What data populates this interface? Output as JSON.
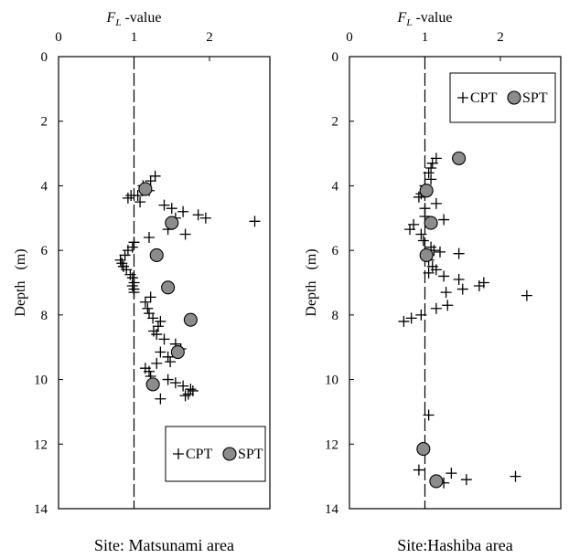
{
  "chart_data": [
    {
      "type": "scatter",
      "top_axis_label_main": "F",
      "top_axis_label_sub": "L",
      "top_axis_label_suffix": " -value",
      "x_ticks": [
        "0",
        "1",
        "2"
      ],
      "xlim": [
        0,
        2.8
      ],
      "ylabel": "Depth   (m)",
      "y_ticks": [
        "0",
        "2",
        "4",
        "6",
        "8",
        "10",
        "12",
        "14"
      ],
      "ylim": [
        0,
        14
      ],
      "y_inverted": true,
      "reference_line_x": 1,
      "caption": "Site: Matsunami area",
      "legend": {
        "placement": "bottom-right",
        "cpt_label": "CPT",
        "spt_label": "SPT"
      },
      "series": [
        {
          "name": "CPT",
          "marker": "plus",
          "points": [
            [
              1.28,
              3.7
            ],
            [
              1.22,
              3.85
            ],
            [
              1.12,
              4.0
            ],
            [
              1.2,
              4.15
            ],
            [
              0.96,
              4.3
            ],
            [
              1.05,
              4.3
            ],
            [
              0.92,
              4.38
            ],
            [
              1.08,
              4.5
            ],
            [
              1.4,
              4.6
            ],
            [
              1.5,
              4.7
            ],
            [
              1.65,
              4.8
            ],
            [
              1.85,
              4.9
            ],
            [
              1.95,
              5.0
            ],
            [
              1.55,
              5.0
            ],
            [
              2.6,
              5.1
            ],
            [
              1.45,
              5.35
            ],
            [
              1.68,
              5.5
            ],
            [
              1.2,
              5.6
            ],
            [
              1.0,
              5.75
            ],
            [
              0.98,
              5.9
            ],
            [
              0.92,
              6.0
            ],
            [
              0.88,
              6.15
            ],
            [
              0.82,
              6.3
            ],
            [
              0.84,
              6.4
            ],
            [
              0.86,
              6.5
            ],
            [
              0.9,
              6.6
            ],
            [
              0.95,
              6.75
            ],
            [
              0.98,
              6.85
            ],
            [
              1.0,
              7.0
            ],
            [
              0.98,
              7.1
            ],
            [
              1.0,
              7.2
            ],
            [
              1.0,
              7.3
            ],
            [
              1.22,
              7.45
            ],
            [
              1.15,
              7.6
            ],
            [
              1.18,
              7.8
            ],
            [
              1.2,
              7.95
            ],
            [
              1.25,
              8.1
            ],
            [
              1.35,
              8.2
            ],
            [
              1.32,
              8.35
            ],
            [
              1.26,
              8.5
            ],
            [
              1.3,
              8.6
            ],
            [
              1.4,
              8.75
            ],
            [
              1.55,
              8.9
            ],
            [
              1.62,
              9.05
            ],
            [
              1.35,
              9.15
            ],
            [
              1.45,
              9.3
            ],
            [
              1.48,
              9.45
            ],
            [
              1.3,
              9.5
            ],
            [
              1.15,
              9.65
            ],
            [
              1.2,
              9.75
            ],
            [
              1.22,
              9.9
            ],
            [
              1.45,
              10.0
            ],
            [
              1.55,
              10.1
            ],
            [
              1.65,
              10.2
            ],
            [
              1.75,
              10.3
            ],
            [
              1.78,
              10.35
            ],
            [
              1.72,
              10.45
            ],
            [
              1.68,
              10.5
            ],
            [
              1.35,
              10.6
            ]
          ]
        },
        {
          "name": "SPT",
          "marker": "circle",
          "points": [
            [
              1.15,
              4.1
            ],
            [
              1.5,
              5.15
            ],
            [
              1.3,
              6.15
            ],
            [
              1.45,
              7.15
            ],
            [
              1.75,
              8.15
            ],
            [
              1.58,
              9.15
            ],
            [
              1.25,
              10.15
            ]
          ]
        }
      ]
    },
    {
      "type": "scatter",
      "top_axis_label_main": "F",
      "top_axis_label_sub": "L",
      "top_axis_label_suffix": " -value",
      "x_ticks": [
        "0",
        "1",
        "2"
      ],
      "xlim": [
        0,
        2.8
      ],
      "ylabel": "Depth   (m)",
      "y_ticks": [
        "0",
        "2",
        "4",
        "6",
        "8",
        "10",
        "12",
        "14"
      ],
      "ylim": [
        0,
        14
      ],
      "y_inverted": true,
      "reference_line_x": 1,
      "caption": "Site:Hashiba area",
      "legend": {
        "placement": "top-right",
        "cpt_label": "CPT",
        "spt_label": "SPT"
      },
      "series": [
        {
          "name": "CPT",
          "marker": "plus",
          "points": [
            [
              1.15,
              3.15
            ],
            [
              1.1,
              3.3
            ],
            [
              1.08,
              3.45
            ],
            [
              1.05,
              3.6
            ],
            [
              1.08,
              3.8
            ],
            [
              1.0,
              4.0
            ],
            [
              0.95,
              4.25
            ],
            [
              0.92,
              4.35
            ],
            [
              1.15,
              4.55
            ],
            [
              1.0,
              4.7
            ],
            [
              1.0,
              4.95
            ],
            [
              1.25,
              5.05
            ],
            [
              0.85,
              5.2
            ],
            [
              0.8,
              5.35
            ],
            [
              0.95,
              5.5
            ],
            [
              0.98,
              5.7
            ],
            [
              1.08,
              5.9
            ],
            [
              1.12,
              6.0
            ],
            [
              1.2,
              6.05
            ],
            [
              1.45,
              6.1
            ],
            [
              1.05,
              6.3
            ],
            [
              1.1,
              6.5
            ],
            [
              1.15,
              6.6
            ],
            [
              1.05,
              6.7
            ],
            [
              1.25,
              6.8
            ],
            [
              1.45,
              6.9
            ],
            [
              1.78,
              7.0
            ],
            [
              1.72,
              7.1
            ],
            [
              1.5,
              7.2
            ],
            [
              1.28,
              7.3
            ],
            [
              2.35,
              7.4
            ],
            [
              1.3,
              7.7
            ],
            [
              1.15,
              7.8
            ],
            [
              0.95,
              8.0
            ],
            [
              0.82,
              8.1
            ],
            [
              0.72,
              8.2
            ],
            [
              1.05,
              11.1
            ],
            [
              0.92,
              12.8
            ],
            [
              1.35,
              12.9
            ],
            [
              2.2,
              13.0
            ],
            [
              1.55,
              13.1
            ],
            [
              1.25,
              13.2
            ]
          ]
        },
        {
          "name": "SPT",
          "marker": "circle",
          "points": [
            [
              1.45,
              3.15
            ],
            [
              1.02,
              4.15
            ],
            [
              1.08,
              5.15
            ],
            [
              1.02,
              6.15
            ],
            [
              0.98,
              12.15
            ],
            [
              1.15,
              13.15
            ]
          ]
        }
      ]
    }
  ]
}
